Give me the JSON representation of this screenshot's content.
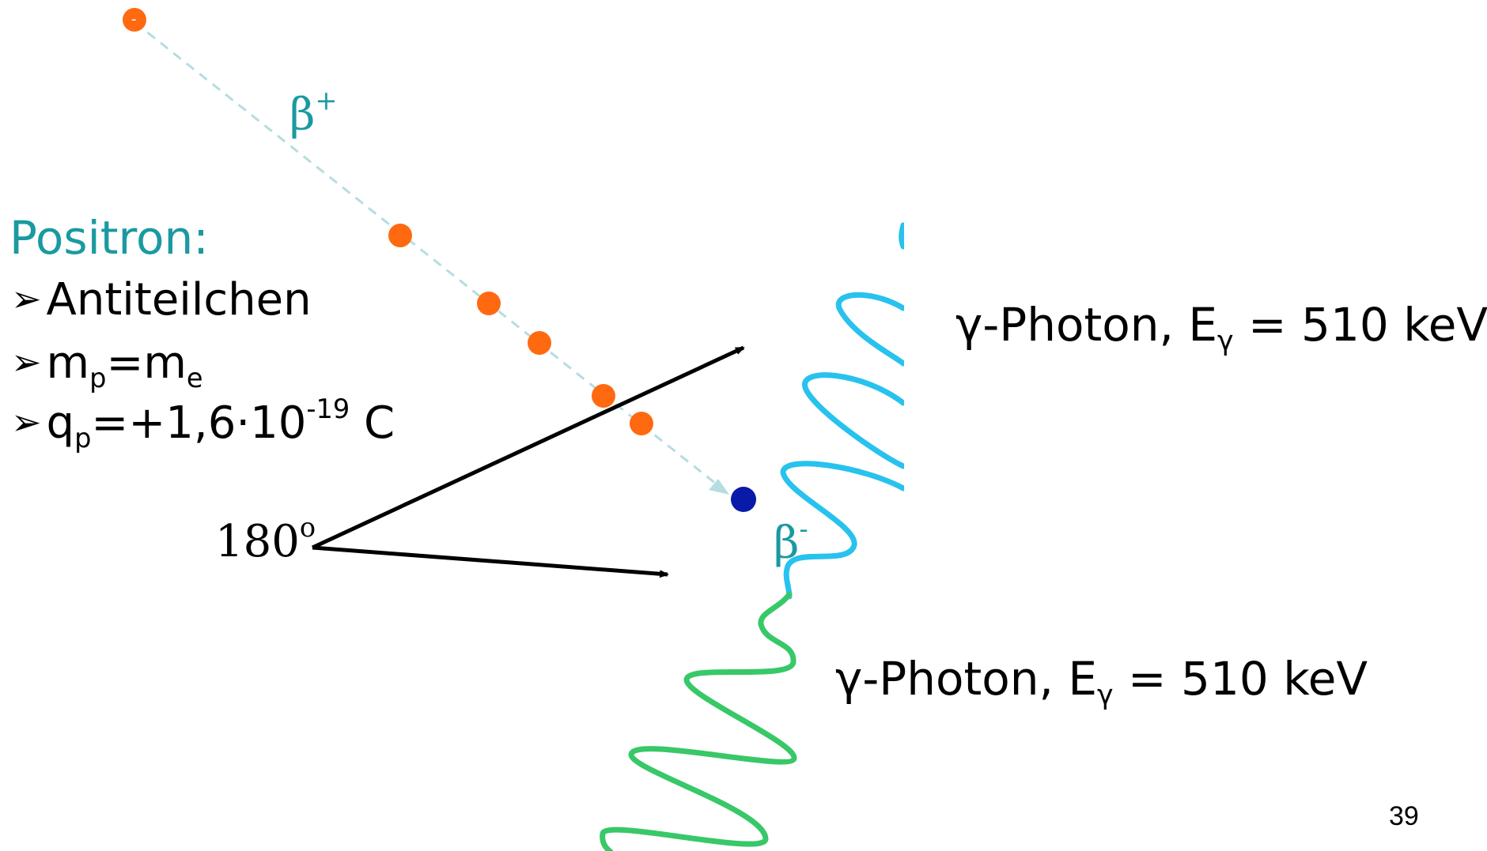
{
  "colors": {
    "teal_text": "#1a9aa0",
    "positron_dot": "#ff6a10",
    "electron_dot": "#0a1aa8",
    "trajectory": "#b5dde0",
    "photon_top_wave": "#28c2ee",
    "photon_bottom_wave": "#38c868",
    "arrow": "#000000"
  },
  "labels": {
    "positron_title": "Positron:",
    "beta_plus": "β",
    "beta_plus_sup": "+",
    "beta_minus": "β",
    "beta_minus_sup": "-",
    "angle": "180",
    "angle_sup": "o",
    "positron_dot_mark": "-"
  },
  "bullets": {
    "marker": "➢",
    "item1": "Antiteilchen",
    "item2_a": "m",
    "item2_a_sub": "p",
    "item2_b": "=m",
    "item2_b_sub": "e",
    "item3_a": "q",
    "item3_a_sub": "p",
    "item3_b": "=+1,6·10",
    "item3_b_sup": "-19",
    "item3_c": " C"
  },
  "photons": {
    "top_prefix": "γ-Photon, E",
    "top_sub": "γ",
    "top_suffix": " = 510 keV",
    "bottom_prefix": "γ-Photon, E",
    "bottom_sub": "γ",
    "bottom_suffix": " = 510 keV"
  },
  "page_number": "39",
  "icons": {
    "bullet_marker": "arrowhead-bullet-icon"
  }
}
